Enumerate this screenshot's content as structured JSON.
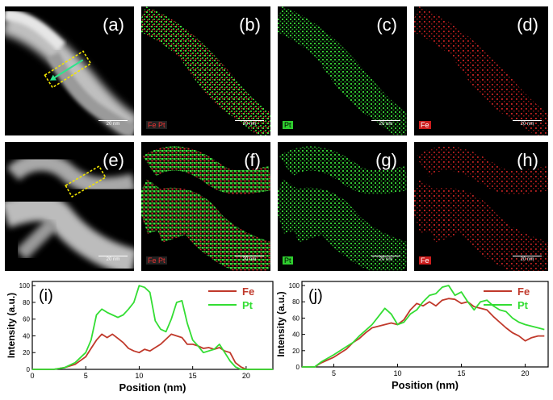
{
  "panels": {
    "a": {
      "label": "(a)",
      "scale": "20 nm"
    },
    "b": {
      "label": "(b)",
      "elements": "Fe Pt",
      "scale": "20 nm"
    },
    "c": {
      "label": "(c)",
      "element": "Pt",
      "scale": "20 nm"
    },
    "d": {
      "label": "(d)",
      "element": "Fe",
      "scale": "20 nm"
    },
    "e": {
      "label": "(e)",
      "scale": "20 nm"
    },
    "f": {
      "label": "(f)",
      "elements": "Fe Pt",
      "scale": "20 nm"
    },
    "g": {
      "label": "(g)",
      "element": "Pt",
      "scale": "20 nm"
    },
    "h": {
      "label": "(h)",
      "element": "Fe",
      "scale": "20 nm"
    }
  },
  "colors": {
    "fe": "#c0392b",
    "pt": "#33dd33"
  },
  "chart_data": [
    {
      "type": "line",
      "panel_label": "(i)",
      "xlabel": "Position (nm)",
      "ylabel": "Intensity (a.u.)",
      "xlim": [
        0,
        22.5
      ],
      "ylim": [
        0,
        105
      ],
      "xticks": [
        0,
        5,
        10,
        15,
        20
      ],
      "yticks": [
        0,
        20,
        40,
        60,
        80,
        100
      ],
      "legend": "top-right",
      "series": [
        {
          "name": "Fe",
          "color": "#c0392b",
          "x": [
            0,
            2,
            3,
            4,
            5,
            5.5,
            6,
            6.5,
            7,
            7.5,
            8,
            8.5,
            9,
            9.5,
            10,
            10.5,
            11,
            11.5,
            12,
            12.5,
            13,
            13.5,
            14,
            14.5,
            15,
            15.5,
            16,
            16.5,
            17,
            17.5,
            18,
            18.5,
            19,
            19.5,
            20,
            21,
            22.5
          ],
          "y": [
            0,
            0,
            2,
            6,
            15,
            25,
            35,
            42,
            38,
            42,
            37,
            32,
            25,
            22,
            20,
            24,
            22,
            26,
            30,
            36,
            42,
            40,
            38,
            30,
            30,
            28,
            25,
            26,
            24,
            26,
            22,
            20,
            8,
            3,
            0,
            0,
            0
          ]
        },
        {
          "name": "Pt",
          "color": "#33dd33",
          "x": [
            0,
            2,
            3,
            4,
            5,
            5.5,
            6,
            6.5,
            7,
            7.5,
            8,
            8.5,
            9,
            9.5,
            10,
            10.5,
            11,
            11.5,
            12,
            12.5,
            13,
            13.5,
            14,
            14.5,
            15,
            15.5,
            16,
            16.5,
            17,
            17.5,
            18,
            18.5,
            19,
            19.5,
            20,
            21,
            22.5
          ],
          "y": [
            0,
            0,
            2,
            8,
            20,
            35,
            65,
            72,
            68,
            65,
            62,
            65,
            72,
            80,
            100,
            98,
            92,
            58,
            48,
            45,
            60,
            80,
            82,
            55,
            35,
            28,
            20,
            22,
            24,
            30,
            20,
            10,
            3,
            0,
            0,
            0,
            0
          ]
        }
      ]
    },
    {
      "type": "line",
      "panel_label": "(j)",
      "xlabel": "Position (nm)",
      "ylabel": "Intensity (a.u.)",
      "xlim": [
        2.5,
        21.8
      ],
      "ylim": [
        0,
        105
      ],
      "xticks": [
        5,
        10,
        15,
        20
      ],
      "yticks": [
        0,
        20,
        40,
        60,
        80,
        100
      ],
      "legend": "top-right",
      "series": [
        {
          "name": "Fe",
          "color": "#c0392b",
          "x": [
            2.5,
            3.5,
            4,
            5,
            6,
            6.5,
            7,
            7.5,
            8,
            8.5,
            9,
            9.5,
            10,
            10.5,
            11,
            11.5,
            12,
            12.5,
            13,
            13.5,
            14,
            14.5,
            15,
            15.5,
            16,
            16.5,
            17,
            17.5,
            18,
            18.5,
            19,
            19.5,
            20,
            20.5,
            21,
            21.5
          ],
          "y": [
            0,
            0,
            5,
            12,
            22,
            30,
            35,
            42,
            48,
            50,
            52,
            54,
            52,
            58,
            70,
            78,
            75,
            80,
            75,
            82,
            84,
            83,
            78,
            80,
            74,
            72,
            70,
            62,
            55,
            48,
            42,
            38,
            32,
            36,
            38,
            38
          ]
        },
        {
          "name": "Pt",
          "color": "#33dd33",
          "x": [
            2.5,
            3.5,
            4,
            5,
            6,
            6.5,
            7,
            7.5,
            8,
            8.5,
            9,
            9.5,
            10,
            10.5,
            11,
            11.5,
            12,
            12.5,
            13,
            13.5,
            14,
            14.5,
            15,
            15.5,
            16,
            16.5,
            17,
            17.5,
            18,
            18.5,
            19,
            19.5,
            20,
            20.5,
            21,
            21.5
          ],
          "y": [
            0,
            0,
            6,
            15,
            25,
            30,
            38,
            45,
            52,
            62,
            72,
            65,
            52,
            55,
            65,
            70,
            80,
            88,
            90,
            98,
            100,
            88,
            92,
            80,
            70,
            80,
            82,
            75,
            70,
            68,
            60,
            55,
            52,
            50,
            48,
            46
          ]
        }
      ]
    }
  ]
}
